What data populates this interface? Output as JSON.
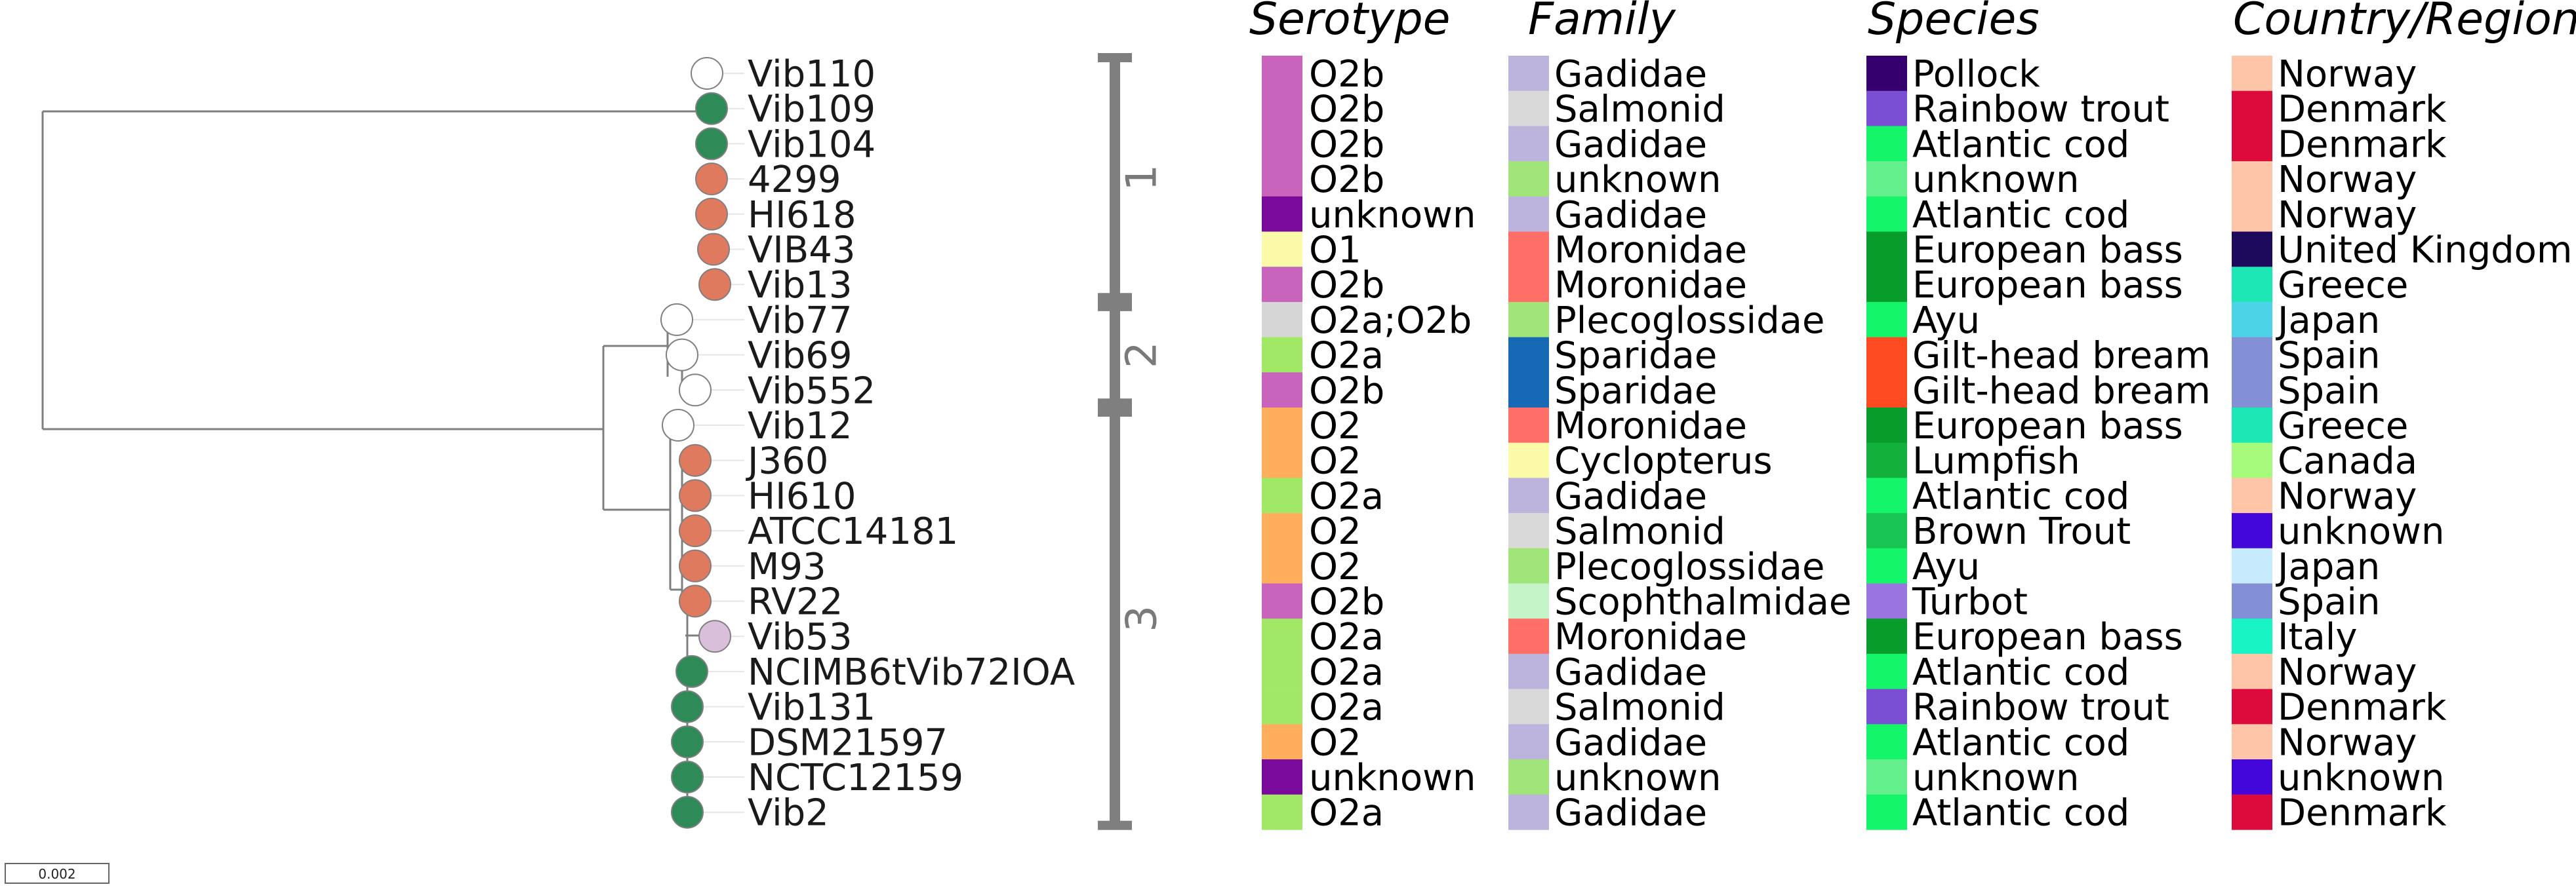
{
  "headers": {
    "serotype": "Serotype",
    "family": "Family",
    "species": "Species",
    "country": "Country/Region"
  },
  "scale_label": "0.002",
  "groups": [
    {
      "label": "1",
      "from": 0,
      "to": 6
    },
    {
      "label": "2",
      "from": 7,
      "to": 9
    },
    {
      "label": "3",
      "from": 10,
      "to": 21
    }
  ],
  "rows": [
    {
      "name": "Vib110",
      "node": "#ffffff",
      "serotype": "O2b",
      "ser_color": "#c964bd",
      "family": "Gadidae",
      "fam_color": "#bcb4dc",
      "species": "Pollock",
      "sp_color": "#35006e",
      "country": "Norway",
      "co_color": "#ffc5a8"
    },
    {
      "name": "Vib109",
      "node": "#2e8b57",
      "serotype": "O2b",
      "ser_color": "#c964bd",
      "family": "Salmonid",
      "fam_color": "#d9d9d9",
      "species": "Rainbow trout",
      "sp_color": "#7b4fd3",
      "country": "Denmark",
      "co_color": "#dc0b3c"
    },
    {
      "name": "Vib104",
      "node": "#2e8b57",
      "serotype": "O2b",
      "ser_color": "#c964bd",
      "family": "Gadidae",
      "fam_color": "#bcb4dc",
      "species": "Atlantic cod",
      "sp_color": "#14f56a",
      "country": "Denmark",
      "co_color": "#dc0b3c"
    },
    {
      "name": "4299",
      "node": "#e07a5f",
      "serotype": "O2b",
      "ser_color": "#c964bd",
      "family": "unknown",
      "fam_color": "#a1e57a",
      "species": "unknown",
      "sp_color": "#63f08c",
      "country": "Norway",
      "co_color": "#ffc5a8"
    },
    {
      "name": "HI618",
      "node": "#e07a5f",
      "serotype": "unknown",
      "ser_color": "#7a0a9c",
      "family": "Gadidae",
      "fam_color": "#bcb4dc",
      "species": "Atlantic cod",
      "sp_color": "#14f56a",
      "country": "Norway",
      "co_color": "#ffc5a8"
    },
    {
      "name": "VIB43",
      "node": "#e07a5f",
      "serotype": "O1",
      "ser_color": "#fbfaa8",
      "family": "Moronidae",
      "fam_color": "#fe6f67",
      "species": "European bass",
      "sp_color": "#089d2b",
      "country": "United Kingdom",
      "co_color": "#1e0a5c"
    },
    {
      "name": "Vib13",
      "node": "#e07a5f",
      "serotype": "O2b",
      "ser_color": "#c964bd",
      "family": "Moronidae",
      "fam_color": "#fe6f67",
      "species": "European bass",
      "sp_color": "#089d2b",
      "country": "Greece",
      "co_color": "#1de8b5"
    },
    {
      "name": "Vib77",
      "node": "#ffffff",
      "serotype": "O2a;O2b",
      "ser_color": "#d6d6d6",
      "family": "Plecoglossidae",
      "fam_color": "#a1e57a",
      "species": "Ayu",
      "sp_color": "#14f56a",
      "country": "Japan",
      "co_color": "#4dd3e8"
    },
    {
      "name": "Vib69",
      "node": "#ffffff",
      "serotype": "O2a",
      "ser_color": "#a1e866",
      "family": "Sparidae",
      "fam_color": "#1769b5",
      "species": "Gilt-head bream",
      "sp_color": "#fd4a21",
      "country": "Spain",
      "co_color": "#8390d6"
    },
    {
      "name": "Vib552",
      "node": "#ffffff",
      "serotype": "O2b",
      "ser_color": "#c964bd",
      "family": "Sparidae",
      "fam_color": "#1769b5",
      "species": "Gilt-head bream",
      "sp_color": "#fd4a21",
      "country": "Spain",
      "co_color": "#8390d6"
    },
    {
      "name": "Vib12",
      "node": "#ffffff",
      "serotype": "O2",
      "ser_color": "#feae5c",
      "family": "Moronidae",
      "fam_color": "#fe6f67",
      "species": "European bass",
      "sp_color": "#089d2b",
      "country": "Greece",
      "co_color": "#1de8b5"
    },
    {
      "name": "J360",
      "node": "#e07a5f",
      "serotype": "O2",
      "ser_color": "#feae5c",
      "family": "Cyclopterus",
      "fam_color": "#fbfaa8",
      "species": "Lumpfish",
      "sp_color": "#13b03c",
      "country": "Canada",
      "co_color": "#a6fb7c"
    },
    {
      "name": "HI610",
      "node": "#e07a5f",
      "serotype": "O2a",
      "ser_color": "#a1e866",
      "family": "Gadidae",
      "fam_color": "#bcb4dc",
      "species": "Atlantic cod",
      "sp_color": "#14f56a",
      "country": "Norway",
      "co_color": "#ffc5a8"
    },
    {
      "name": "ATCC14181",
      "node": "#e07a5f",
      "serotype": "O2",
      "ser_color": "#feae5c",
      "family": "Salmonid",
      "fam_color": "#d9d9d9",
      "species": "Brown Trout",
      "sp_color": "#19c552",
      "country": "unknown",
      "co_color": "#4407db"
    },
    {
      "name": "M93",
      "node": "#e07a5f",
      "serotype": "O2",
      "ser_color": "#feae5c",
      "family": "Plecoglossidae",
      "fam_color": "#a1e57a",
      "species": "Ayu",
      "sp_color": "#14f56a",
      "country": "Japan",
      "co_color": "#c7eafc"
    },
    {
      "name": "RV22",
      "node": "#e07a5f",
      "serotype": "O2b",
      "ser_color": "#c964bd",
      "family": "Scophthalmidae",
      "fam_color": "#c5f4c9",
      "species": "Turbot",
      "sp_color": "#9a74df",
      "country": "Spain",
      "co_color": "#8390d6"
    },
    {
      "name": "Vib53",
      "node": "#d9bfd9",
      "serotype": "O2a",
      "ser_color": "#a1e866",
      "family": "Moronidae",
      "fam_color": "#fe6f67",
      "species": "European bass",
      "sp_color": "#089d2b",
      "country": "Italy",
      "co_color": "#19f4c4"
    },
    {
      "name": "NCIMB6tVib72IOA",
      "node": "#2e8b57",
      "serotype": "O2a",
      "ser_color": "#a1e866",
      "family": "Gadidae",
      "fam_color": "#bcb4dc",
      "species": "Atlantic cod",
      "sp_color": "#14f56a",
      "country": "Norway",
      "co_color": "#ffc5a8"
    },
    {
      "name": "Vib131",
      "node": "#2e8b57",
      "serotype": "O2a",
      "ser_color": "#a1e866",
      "family": "Salmonid",
      "fam_color": "#d9d9d9",
      "species": "Rainbow trout",
      "sp_color": "#7b4fd3",
      "country": "Denmark",
      "co_color": "#dc0b3c"
    },
    {
      "name": "DSM21597",
      "node": "#2e8b57",
      "serotype": "O2",
      "ser_color": "#feae5c",
      "family": "Gadidae",
      "fam_color": "#bcb4dc",
      "species": "Atlantic cod",
      "sp_color": "#14f56a",
      "country": "Norway",
      "co_color": "#ffc5a8"
    },
    {
      "name": "NCTC12159",
      "node": "#2e8b57",
      "serotype": "unknown",
      "ser_color": "#7a0a9c",
      "family": "unknown",
      "fam_color": "#a1e57a",
      "species": "unknown",
      "sp_color": "#63f08c",
      "country": "unknown",
      "co_color": "#4407db"
    },
    {
      "name": "Vib2",
      "node": "#2e8b57",
      "serotype": "O2a",
      "ser_color": "#a1e866",
      "family": "Gadidae",
      "fam_color": "#bcb4dc",
      "species": "Atlantic cod",
      "sp_color": "#14f56a",
      "country": "Denmark",
      "co_color": "#dc0b3c"
    }
  ]
}
